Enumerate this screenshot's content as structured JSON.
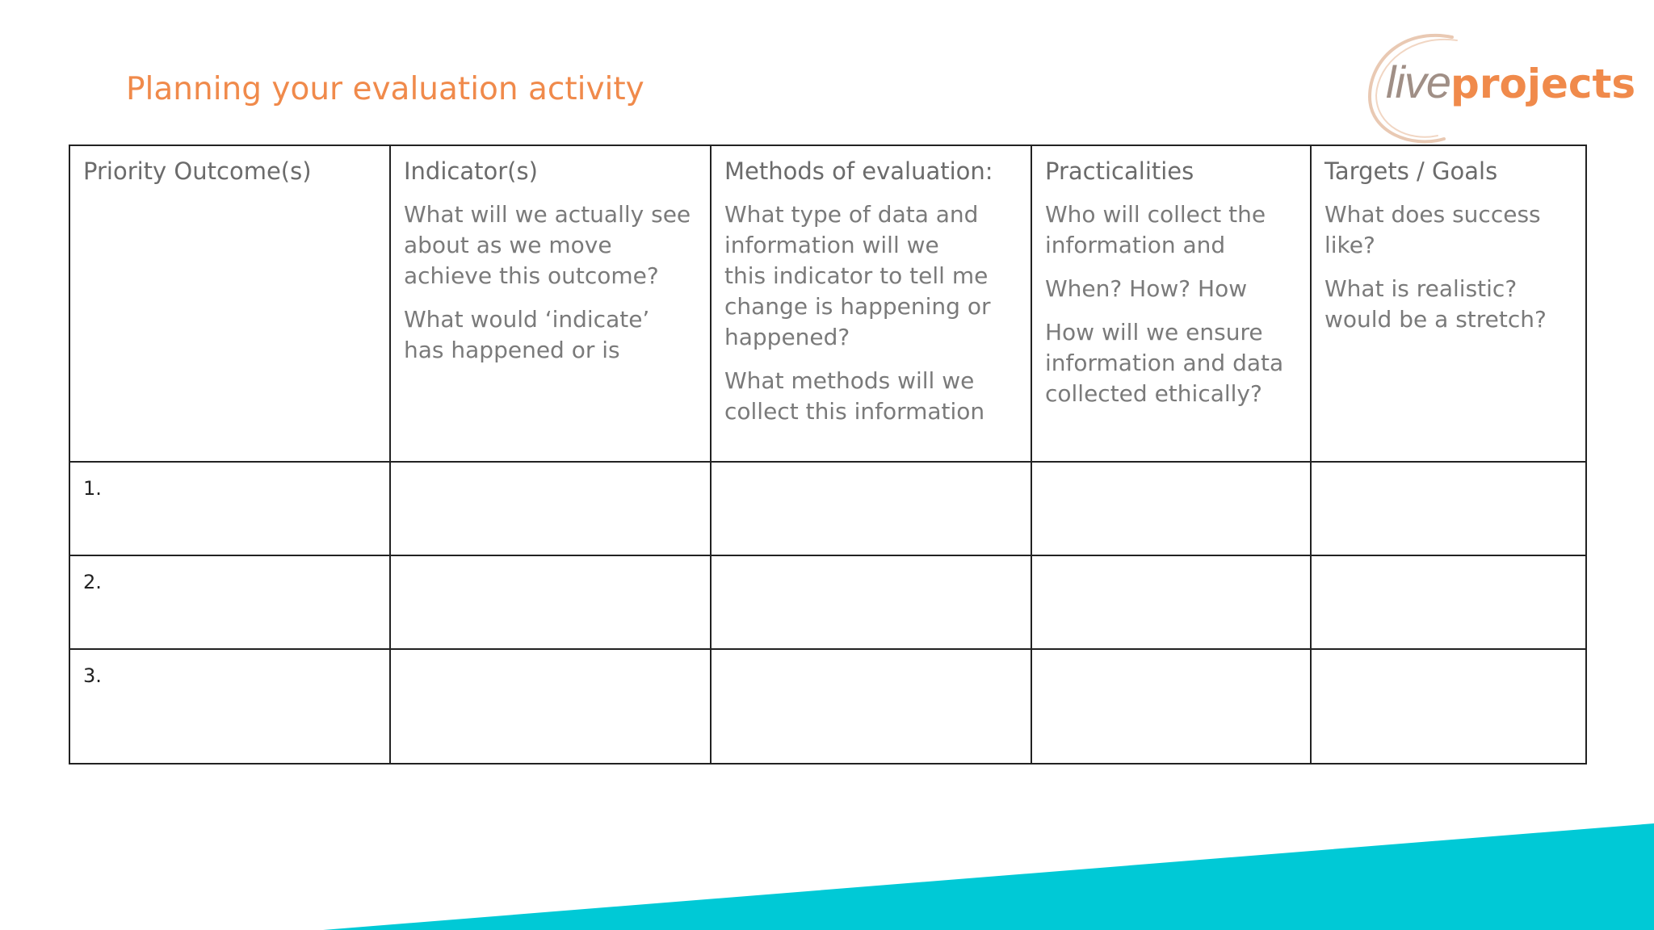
{
  "slide": {
    "title": "Planning your evaluation activity",
    "logo": {
      "part1": "live",
      "part2": "projects",
      "accent_color": "#f08a4b"
    },
    "band_color": "#00c9d6"
  },
  "table": {
    "headers": [
      {
        "title": "Priority Outcome(s)",
        "prompts": []
      },
      {
        "title": "Indicator(s)",
        "prompts": [
          [
            "What will we actually see",
            "about as we move",
            "achieve this outcome?"
          ],
          [
            "What would ‘indicate’",
            "has happened or is"
          ]
        ]
      },
      {
        "title": "Methods of evaluation:",
        "prompts": [
          [
            "What type of data and",
            "information will we",
            "this indicator to tell me",
            "change is happening or",
            "happened?"
          ],
          [
            "What methods will we",
            "collect this information"
          ]
        ]
      },
      {
        "title": "Practicalities",
        "prompts": [
          [
            "Who will collect the",
            "information and"
          ],
          [
            "When? How? How"
          ],
          [
            "How will we ensure",
            "information and data",
            "collected ethically?"
          ]
        ]
      },
      {
        "title": "Targets / Goals",
        "prompts": [
          [
            "What does success",
            "like?"
          ],
          [
            "What is realistic?",
            "would be a stretch?"
          ]
        ]
      }
    ],
    "rows": [
      {
        "number": "1."
      },
      {
        "number": "2."
      },
      {
        "number": "3."
      }
    ]
  }
}
